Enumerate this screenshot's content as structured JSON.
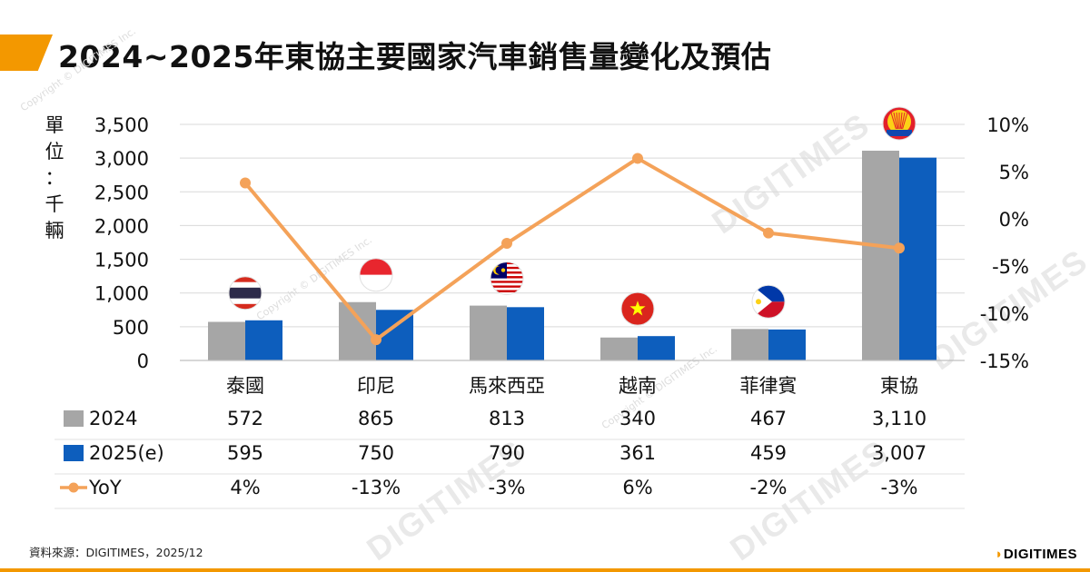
{
  "title": "2024~2025年東協主要國家汽車銷售量變化及預估",
  "unit_label": [
    "單",
    "位",
    "：",
    "千",
    "輛"
  ],
  "source": "資料來源：DIGITIMES，2025/12",
  "logo": "DIGITIMES",
  "watermark": "DIGITIMES",
  "watermark_copyright": "Copyright © DIGITIMES Inc.",
  "colors": {
    "accent": "#f39800",
    "series_2024": "#a6a6a6",
    "series_2025": "#0d5ebd",
    "yoy": "#f4a259"
  },
  "chart_data": {
    "type": "bar",
    "categories": [
      "泰國",
      "印尼",
      "馬來西亞",
      "越南",
      "菲律賓",
      "東協"
    ],
    "series": [
      {
        "name": "2024",
        "values": [
          572,
          865,
          813,
          340,
          467,
          3110
        ]
      },
      {
        "name": "2025(e)",
        "values": [
          595,
          750,
          790,
          361,
          459,
          3007
        ]
      }
    ],
    "line_series": {
      "name": "YoY",
      "type": "line",
      "axis": "right",
      "values": [
        3.8,
        -12.8,
        -2.6,
        6.4,
        -1.5,
        -3.1
      ]
    },
    "ylim": [
      0,
      3500
    ],
    "y_ticks": [
      "3,500",
      "3,000",
      "2,500",
      "2,000",
      "1,500",
      "1,000",
      "500",
      "0"
    ],
    "y2lim": [
      -15,
      10
    ],
    "y2_ticks": [
      "10%",
      "5%",
      "0%",
      "-5%",
      "-10%",
      "-15%"
    ],
    "grid": true,
    "category_icons": [
      "thailand-flag",
      "indonesia-flag",
      "malaysia-flag",
      "vietnam-flag",
      "philippines-flag",
      "asean-emblem"
    ],
    "data_table": {
      "rows": [
        {
          "label": "2024",
          "values": [
            "572",
            "865",
            "813",
            "340",
            "467",
            "3,110"
          ]
        },
        {
          "label": "2025(e)",
          "values": [
            "595",
            "750",
            "790",
            "361",
            "459",
            "3,007"
          ]
        },
        {
          "label": "YoY",
          "values": [
            "4%",
            "-13%",
            "-3%",
            "6%",
            "-2%",
            "-3%"
          ]
        }
      ]
    }
  }
}
